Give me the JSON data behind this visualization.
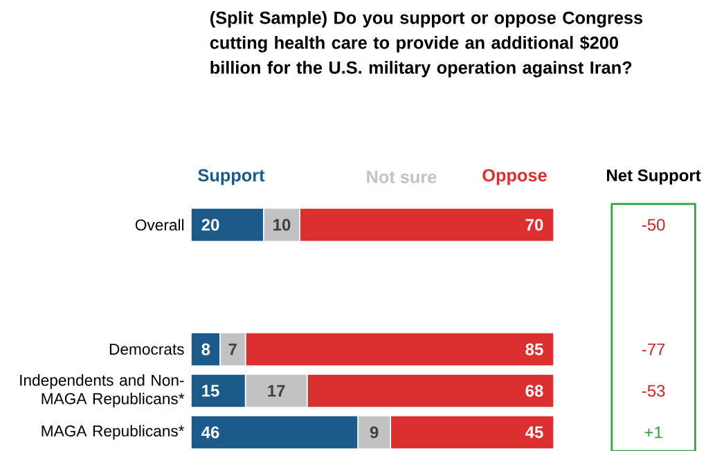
{
  "chart_data": {
    "type": "bar",
    "orientation": "horizontal",
    "stacked": true,
    "title": "(Split Sample) Do you support or oppose Congress cutting health care to provide an additional $200 billion for the U.S. military operation against Iran?",
    "categories": [
      "Overall",
      null,
      null,
      "Democrats",
      "Independents and Non-MAGA Republicans*",
      "MAGA Republicans*"
    ],
    "series": [
      {
        "name": "Support",
        "color": "#1c5a8a",
        "values": [
          20,
          null,
          null,
          8,
          15,
          46
        ]
      },
      {
        "name": "Not sure",
        "color": "#c2c2c2",
        "values": [
          10,
          null,
          null,
          7,
          17,
          9
        ]
      },
      {
        "name": "Oppose",
        "color": "#dc2f2f",
        "values": [
          70,
          null,
          null,
          85,
          68,
          45
        ]
      }
    ],
    "tick_labels": "y",
    "data_labels": true,
    "legend": "top",
    "annotations": [
      "Net Support",
      "-50",
      "-77",
      "-53",
      "+1"
    ]
  }
}
